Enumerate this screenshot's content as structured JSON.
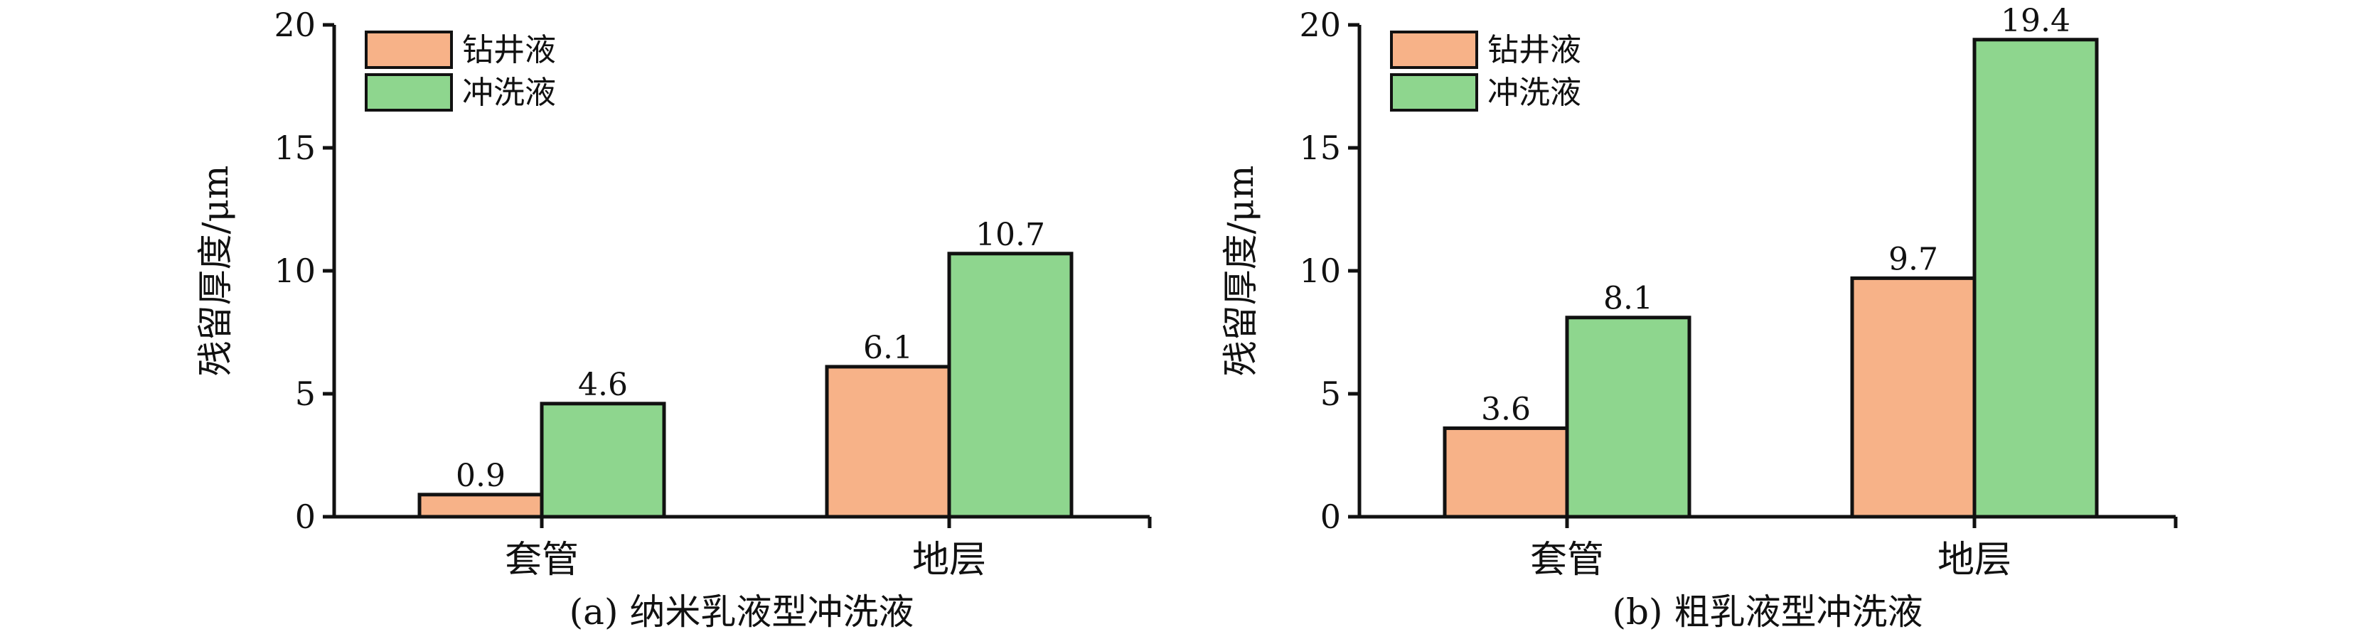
{
  "chart_data": [
    {
      "type": "bar",
      "title": "(a) 纳米乳液型冲洗液",
      "ylabel": "残留厚度/μm",
      "xlabel": "",
      "categories": [
        "套管",
        "地层"
      ],
      "ylim": [
        0,
        20
      ],
      "yticks": [
        0,
        5,
        10,
        15,
        20
      ],
      "legend_position": "top-left",
      "grid": false,
      "series": [
        {
          "name": "钻井液",
          "values": [
            0.9,
            6.1
          ],
          "labels": [
            "0.9",
            "6.1"
          ],
          "color": "#F7B288"
        },
        {
          "name": "冲洗液",
          "values": [
            4.6,
            10.7
          ],
          "labels": [
            "4.6",
            "10.7"
          ],
          "color": "#8ED68E"
        }
      ]
    },
    {
      "type": "bar",
      "title": "(b) 粗乳液型冲洗液",
      "ylabel": "残留厚度/μm",
      "xlabel": "",
      "categories": [
        "套管",
        "地层"
      ],
      "ylim": [
        0,
        20
      ],
      "yticks": [
        0,
        5,
        10,
        15,
        20
      ],
      "legend_position": "top-left",
      "grid": false,
      "series": [
        {
          "name": "钻井液",
          "values": [
            3.6,
            9.7
          ],
          "labels": [
            "3.6",
            "9.7"
          ],
          "color": "#F7B288"
        },
        {
          "name": "冲洗液",
          "values": [
            8.1,
            19.4
          ],
          "labels": [
            "8.1",
            "19.4"
          ],
          "color": "#8ED68E"
        }
      ]
    }
  ]
}
